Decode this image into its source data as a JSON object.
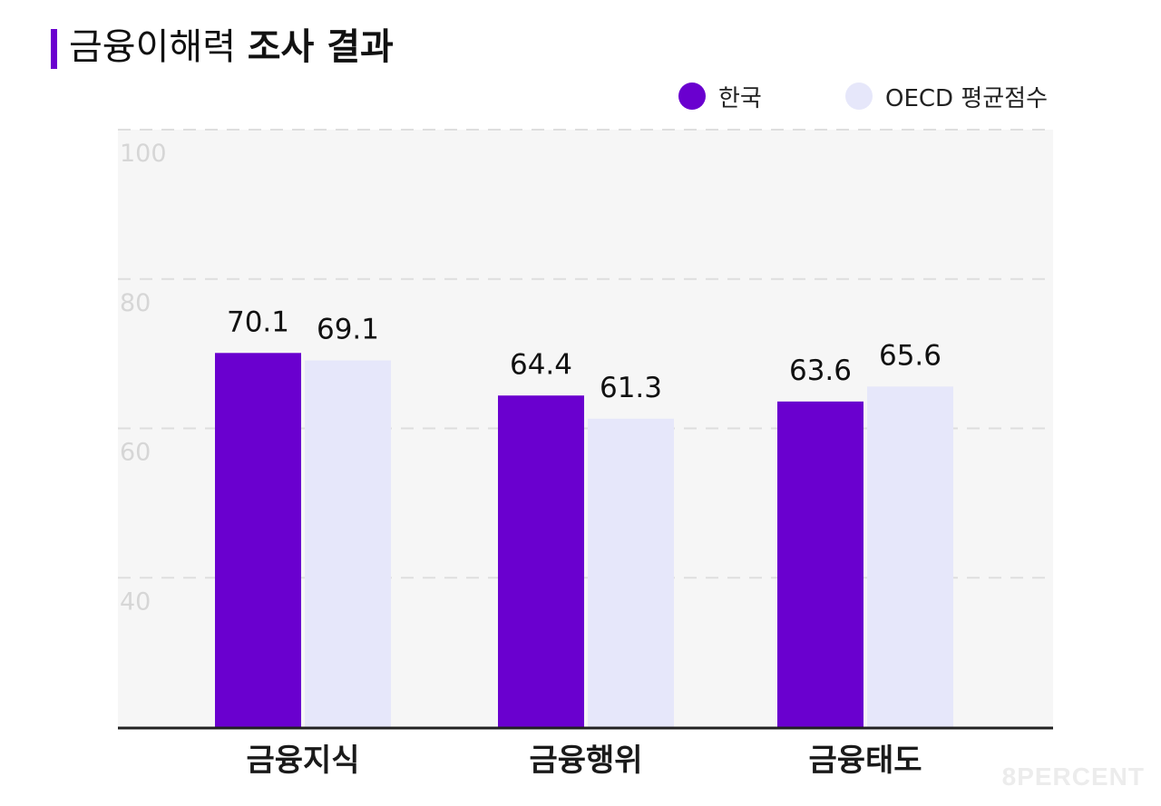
{
  "header": {
    "title_light": "금융이해력",
    "title_bold": "조사 결과"
  },
  "legend": [
    {
      "label": "한국",
      "color": "#6a00cf"
    },
    {
      "label": "OECD 평균점수",
      "color": "#e6e7fa"
    }
  ],
  "watermark": "8PERCENT",
  "chart_data": {
    "type": "bar",
    "title": "금융이해력 조사 결과",
    "categories": [
      "금융지식",
      "금융행위",
      "금융태도"
    ],
    "series": [
      {
        "name": "한국",
        "values": [
          70.1,
          64.4,
          63.6
        ],
        "color": "#6a00cf"
      },
      {
        "name": "OECD 평균점수",
        "values": [
          69.1,
          61.3,
          65.6
        ],
        "color": "#e6e7fa"
      }
    ],
    "value_labels": [
      [
        "70.1",
        "64.4",
        "63.6"
      ],
      [
        "69.1",
        "61.3",
        "65.6"
      ]
    ],
    "yticks": [
      40,
      60,
      80,
      100
    ],
    "ytick_labels": [
      "40",
      "60",
      "80",
      "100"
    ],
    "ylim": [
      20,
      100
    ],
    "grid": true,
    "legend_position": "top-right",
    "xlabel": "",
    "ylabel": ""
  }
}
